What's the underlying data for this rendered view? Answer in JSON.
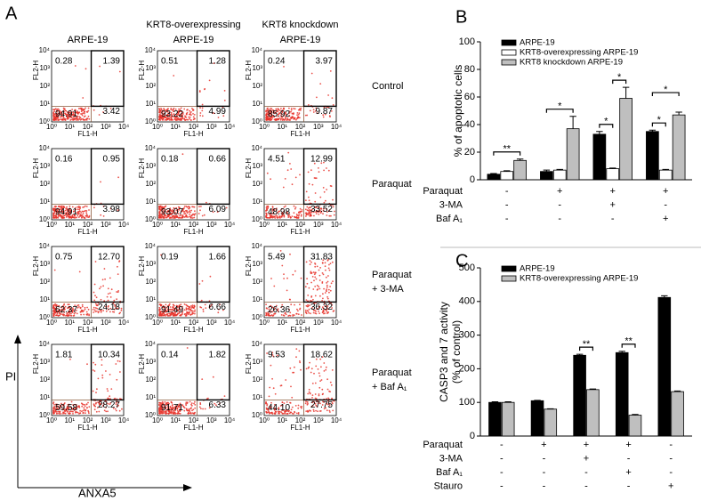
{
  "panel_a": {
    "label": "A",
    "columns": [
      "ARPE-19",
      [
        "KRT8-overexpressing",
        "ARPE-19"
      ],
      [
        "KRT8 knockdown",
        "ARPE-19"
      ]
    ],
    "x_label": "FL1-H",
    "y_label": "FL2-H",
    "ticks": [
      "10⁰",
      "10¹",
      "10²",
      "10³",
      "10⁴"
    ],
    "y_axis": "PI",
    "x_axis": "ANXA5",
    "rows": [
      {
        "label": [
          "Control"
        ],
        "plots": [
          [
            "0.28",
            "1.39",
            "94.91",
            "3.42"
          ],
          [
            "0.51",
            "1.28",
            "93.22",
            "4.99"
          ],
          [
            "0.24",
            "3.97",
            "85.92",
            "9.87"
          ]
        ]
      },
      {
        "label": [
          "Paraquat"
        ],
        "plots": [
          [
            "0.16",
            "0.95",
            "94.91",
            "3.98"
          ],
          [
            "0.18",
            "0.66",
            "93.07",
            "6.09"
          ],
          [
            "4.51",
            "12.99",
            "48.98",
            "33.52"
          ]
        ]
      },
      {
        "label": [
          "Paraquat",
          "+ 3-MA"
        ],
        "plots": [
          [
            "0.75",
            "12.70",
            "62.37",
            "24.18"
          ],
          [
            "0.19",
            "1.66",
            "91.49",
            "6.66"
          ],
          [
            "5.49",
            "31.83",
            "26.36",
            "36.32"
          ]
        ]
      },
      {
        "label": [
          "Paraquat",
          "+ Baf A₁"
        ],
        "plots": [
          [
            "1.81",
            "10.34",
            "59.58",
            "28.27"
          ],
          [
            "0.14",
            "1.82",
            "91.71",
            "6.33"
          ],
          [
            "9.53",
            "18.62",
            "44.10",
            "27.75"
          ]
        ]
      }
    ]
  },
  "chart_data": [
    {
      "type": "bar",
      "label": "B",
      "y_label": "% of apoptotic cells",
      "categories": [
        null,
        null,
        null,
        null
      ],
      "series": [
        {
          "name": "ARPE-19",
          "color": "#000000",
          "values": [
            4,
            6,
            33,
            35
          ],
          "errors": [
            0.5,
            1,
            2,
            1
          ]
        },
        {
          "name": "KRT8-overexpressing ARPE-19",
          "color": "#ffffff",
          "values": [
            6,
            7,
            8,
            7
          ],
          "errors": [
            0.5,
            0.5,
            0.5,
            0.5
          ]
        },
        {
          "name": "KRT8 knockdown ARPE-19",
          "color": "#bfbfbf",
          "values": [
            14,
            37,
            59,
            47
          ],
          "errors": [
            1,
            9,
            8,
            2
          ]
        }
      ],
      "ylim": [
        0,
        100
      ],
      "yticks": [
        0,
        20,
        40,
        60,
        80,
        100
      ],
      "grid": false,
      "legend": "upper left",
      "treatments": [
        {
          "name": "Paraquat",
          "values": [
            "-",
            "+",
            "+",
            "+"
          ]
        },
        {
          "name": "3-MA",
          "values": [
            "-",
            "-",
            "+",
            "-"
          ]
        },
        {
          "name": "Baf A₁",
          "values": [
            "-",
            "-",
            "-",
            "+"
          ]
        }
      ],
      "annotations": [
        "**",
        "*",
        "*",
        "*",
        "*",
        "*"
      ]
    },
    {
      "type": "bar",
      "label": "C",
      "y_label": [
        "CASP3 and 7 activity",
        "(% of control)"
      ],
      "categories": [
        null,
        null,
        null,
        null,
        null
      ],
      "series": [
        {
          "name": "ARPE-19",
          "color": "#000000",
          "values": [
            100,
            105,
            240,
            248,
            412
          ],
          "errors": [
            2,
            1,
            3,
            4,
            5
          ]
        },
        {
          "name": "KRT8-overexpressing ARPE-19",
          "color": "#bfbfbf",
          "values": [
            100,
            80,
            138,
            62,
            132
          ],
          "errors": [
            2,
            1,
            2,
            2,
            2
          ]
        }
      ],
      "ylim": [
        0,
        500
      ],
      "yticks": [
        0,
        100,
        200,
        300,
        400,
        500
      ],
      "grid": false,
      "legend": "upper left",
      "treatments": [
        {
          "name": "Paraquat",
          "values": [
            "-",
            "+",
            "+",
            "+",
            "-"
          ]
        },
        {
          "name": "3-MA",
          "values": [
            "-",
            "-",
            "+",
            "-",
            "-"
          ]
        },
        {
          "name": "Baf A₁",
          "values": [
            "-",
            "-",
            "-",
            "+",
            "-"
          ]
        },
        {
          "name": "Stauro",
          "values": [
            "-",
            "-",
            "-",
            "-",
            "+"
          ]
        }
      ],
      "annotations": [
        "**",
        "**"
      ]
    }
  ]
}
